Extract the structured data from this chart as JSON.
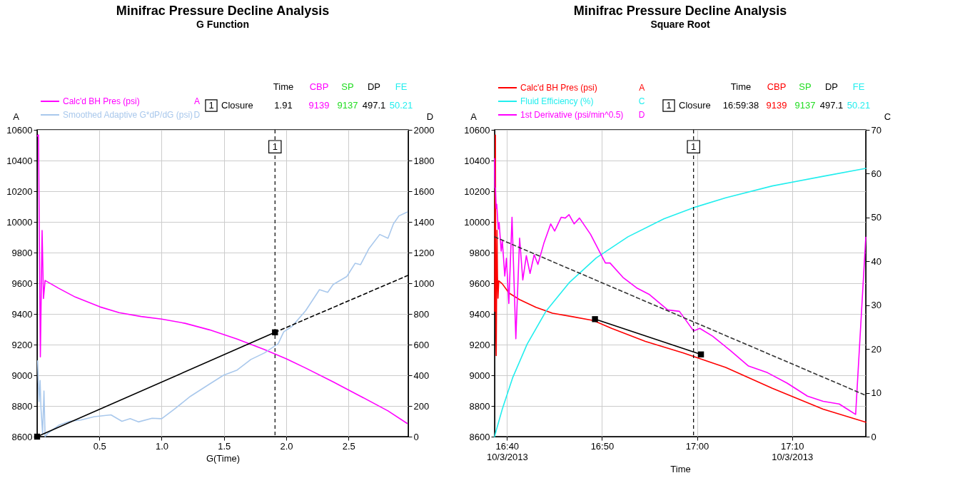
{
  "chart_data": [
    {
      "type": "line",
      "title": "Minifrac Pressure Decline Analysis",
      "subtitle": "G Function",
      "xlabel": "G(Time)",
      "ylabel": "A",
      "y2label": "D",
      "xlim": [
        0,
        2.98
      ],
      "xticks": [
        0.5,
        {
          "value": 1,
          "label": "1.0"
        },
        1.5,
        {
          "value": 2,
          "label": "2.0"
        },
        2.5
      ],
      "ylim": [
        8600,
        10600
      ],
      "yticks": [
        8600,
        8800,
        9000,
        9200,
        9400,
        9600,
        9800,
        10000,
        10200,
        10400,
        10600
      ],
      "y2lim": [
        0,
        2000
      ],
      "y2ticks": [
        0,
        200,
        400,
        600,
        800,
        1000,
        1200,
        1400,
        1600,
        1800,
        2000
      ],
      "grid": true,
      "legend": "top left",
      "marker": "none",
      "line_style": "solid",
      "ref_lines": [
        {
          "axis": "x",
          "value": 1.91,
          "color": "#000000",
          "line_style": "dashed"
        }
      ],
      "annotations": [
        "Time",
        "CBP",
        "SP",
        "DP",
        "FE",
        "1",
        "Closure",
        "1.91",
        "9139",
        "9137",
        "497.1",
        "50.21",
        "A",
        "D",
        {
          "text": "1",
          "x": 1.91,
          "y": 10490
        }
      ],
      "series": [
        {
          "name": "Calc'd BH Pres (psi)",
          "color": "#ff00ff",
          "axis": "y",
          "x": [
            0.002,
            0.011,
            0.026,
            0.04,
            0.051,
            0.064,
            0.174,
            0.306,
            0.504,
            0.659,
            0.835,
            1.0,
            1.187,
            1.385,
            1.606,
            1.826,
            2.002,
            2.156,
            2.377,
            2.597,
            2.817,
            2.971
          ],
          "values": [
            10560,
            10567,
            9120,
            9944,
            9500,
            9618,
            9567,
            9510,
            9446,
            9408,
            9383,
            9366,
            9339,
            9296,
            9236,
            9167,
            9107,
            9047,
            8957,
            8863,
            8768,
            8686
          ]
        },
        {
          "name": "Smoothed Adaptive G*dP/dG (psi)",
          "color": "#a9c8ec",
          "axis": "y2",
          "x": [
            0.004,
            0.015,
            0.024,
            0.031,
            0.044,
            0.055,
            0.064,
            0.086,
            0.174,
            0.262,
            0.35,
            0.46,
            0.593,
            0.681,
            0.747,
            0.813,
            0.923,
            1.0,
            1.099,
            1.231,
            1.385,
            1.496,
            1.606,
            1.716,
            1.826,
            1.936,
            1.98,
            2.046,
            2.156,
            2.267,
            2.333,
            2.377,
            2.487,
            2.553,
            2.597,
            2.663,
            2.751,
            2.817,
            2.861,
            2.905,
            2.971
          ],
          "values": [
            494,
            228,
            366,
            185,
            20,
            297,
            0,
            22,
            74,
            100,
            108,
            130,
            142,
            100,
            117,
            96,
            120,
            117,
            177,
            263,
            343,
            400,
            434,
            503,
            546,
            606,
            683,
            718,
            821,
            958,
            941,
            992,
            1044,
            1130,
            1121,
            1224,
            1318,
            1293,
            1387,
            1439,
            1464
          ]
        },
        {
          "color": "#000000",
          "axis": "y2",
          "marker": "square",
          "line_style": "solid",
          "x": [
            0,
            1.91
          ],
          "values": [
            0,
            680
          ]
        },
        {
          "color": "#000000",
          "axis": "y2",
          "line_style": "dashed",
          "x": [
            1.91,
            2.98
          ],
          "values": [
            680,
            1052
          ]
        }
      ]
    },
    {
      "type": "line",
      "title": "Minifrac Pressure Decline Analysis",
      "subtitle": "Square Root",
      "xlabel": "Time",
      "ylabel": "A",
      "y2label": "C",
      "xlim": [
        16.645,
        17.296
      ],
      "xticks": [
        {
          "value": 16.6667,
          "label": "16:40\n10/3/2013"
        },
        {
          "value": 16.8333,
          "label": "16:50"
        },
        {
          "value": 17,
          "label": "17:00"
        },
        {
          "value": 17.1667,
          "label": "17:10\n10/3/2013"
        }
      ],
      "ylim": [
        8600,
        10600
      ],
      "yticks": [
        8600,
        8800,
        9000,
        9200,
        9400,
        9600,
        9800,
        10000,
        10200,
        10400,
        10600
      ],
      "y2lim": [
        0,
        70
      ],
      "y2ticks": [
        0,
        10,
        20,
        30,
        40,
        50,
        60,
        70
      ],
      "grid": true,
      "legend": "top left",
      "marker": "none",
      "line_style": "solid",
      "ref_lines": [
        {
          "axis": "x",
          "value": 16.9939,
          "color": "#000000",
          "line_style": "dashed"
        }
      ],
      "annotations": [
        "Time",
        "CBP",
        "SP",
        "DP",
        "FE",
        "1",
        "Closure",
        "16:59:38",
        "9139",
        "9137",
        "497.1",
        "50.21",
        "A",
        "C",
        "D",
        {
          "text": "1",
          "x": 16.9939,
          "y": 10490
        }
      ],
      "series": [
        {
          "name": "Calc'd BH Pres (psi)",
          "color": "#ff0000",
          "axis": "y",
          "x": [
            16.6452,
            16.6454,
            16.6464,
            16.6468,
            16.6472,
            16.6478,
            16.6486,
            16.6492,
            16.65,
            16.6509,
            16.6523,
            16.6585,
            16.6703,
            16.6883,
            16.7175,
            16.7464,
            16.7799,
            16.8182,
            16.8502,
            16.9094,
            16.9761,
            17.0503,
            17.1321,
            17.2212,
            17.296
          ],
          "values": [
            9417,
            9987,
            10566,
            9817,
            9272,
            9128,
            9647,
            9945,
            9647,
            9502,
            9616,
            9596,
            9536,
            9494,
            9443,
            9405,
            9383,
            9357,
            9306,
            9221,
            9145,
            9051,
            8915,
            8779,
            8694
          ]
        },
        {
          "name": "Fluid Efficiency (%)",
          "color": "#22eeee",
          "axis": "y2",
          "x": [
            16.645,
            16.648,
            16.6585,
            16.6765,
            16.702,
            16.735,
            16.7755,
            16.8234,
            16.8789,
            16.9418,
            16.9977,
            17.0503,
            17.1321,
            17.2212,
            17.296
          ],
          "values": [
            0,
            1.5,
            6.3,
            13.4,
            21.1,
            28.6,
            35.1,
            40.8,
            45.6,
            49.7,
            52.4,
            54.5,
            57.2,
            59.4,
            61.2
          ]
        },
        {
          "name": "1st Derivative (psi/min^0.5)",
          "color": "#ff00ff",
          "axis": "y",
          "x": [
            16.645,
            16.6455,
            16.6464,
            16.6477,
            16.6487,
            16.6513,
            16.6529,
            16.6565,
            16.6585,
            16.6628,
            16.6657,
            16.6699,
            16.6755,
            16.6822,
            16.6888,
            16.6944,
            16.7006,
            16.7071,
            16.7144,
            16.7209,
            16.7313,
            16.7434,
            16.7503,
            16.7617,
            16.7689,
            16.7755,
            16.7845,
            16.7938,
            16.8132,
            16.8393,
            16.8474,
            16.8701,
            16.894,
            16.9158,
            16.9486,
            16.9691,
            16.994,
            17.0049,
            17.0272,
            17.0582,
            17.0903,
            17.1235,
            17.158,
            17.1937,
            17.2212,
            17.2494,
            17.2637,
            17.2782,
            17.296
          ],
          "values": [
            10413,
            10222,
            10222,
            10089,
            10115,
            9953,
            9996,
            9809,
            9877,
            9647,
            9763,
            9468,
            10030,
            9238,
            9894,
            9621,
            9780,
            9664,
            9786,
            9723,
            9860,
            9987,
            9940,
            10030,
            10025,
            10047,
            9987,
            10025,
            9919,
            9732,
            9732,
            9638,
            9570,
            9528,
            9426,
            9417,
            9289,
            9306,
            9255,
            9162,
            9060,
            9017,
            8949,
            8864,
            8830,
            8813,
            8779,
            8745,
            9900
          ]
        },
        {
          "color": "#000000",
          "axis": "y",
          "marker": "square",
          "line_style": "solid",
          "x": [
            16.821,
            17.0069
          ],
          "values": [
            9366,
            9136
          ]
        },
        {
          "color": "#333333",
          "axis": "y",
          "line_style": "dashed",
          "x": [
            16.645,
            17.296
          ],
          "values": [
            9902,
            8869
          ]
        }
      ]
    }
  ]
}
